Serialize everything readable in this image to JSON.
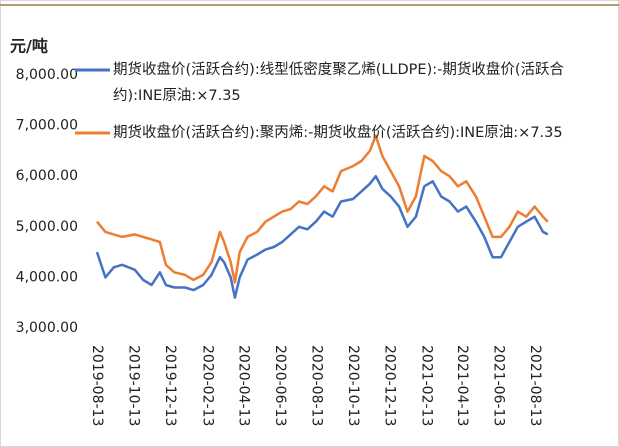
{
  "chart_data": {
    "type": "line",
    "y_label": "元/吨",
    "x": [
      "2019-08-13",
      "2019-08-27",
      "2019-09-10",
      "2019-09-24",
      "2019-10-15",
      "2019-10-29",
      "2019-11-12",
      "2019-11-26",
      "2019-12-06",
      "2019-12-20",
      "2020-01-07",
      "2020-01-21",
      "2020-02-06",
      "2020-02-20",
      "2020-03-05",
      "2020-03-12",
      "2020-03-23",
      "2020-03-30",
      "2020-04-07",
      "2020-04-20",
      "2020-05-06",
      "2020-05-20",
      "2020-06-03",
      "2020-06-17",
      "2020-07-01",
      "2020-07-15",
      "2020-07-29",
      "2020-08-12",
      "2020-08-26",
      "2020-09-09",
      "2020-09-23",
      "2020-10-13",
      "2020-10-27",
      "2020-11-10",
      "2020-11-20",
      "2020-12-01",
      "2020-12-15",
      "2020-12-29",
      "2021-01-12",
      "2021-01-26",
      "2021-02-09",
      "2021-02-23",
      "2021-03-09",
      "2021-03-23",
      "2021-04-06",
      "2021-04-20",
      "2021-05-06",
      "2021-05-20",
      "2021-06-03",
      "2021-06-17",
      "2021-07-01",
      "2021-07-15",
      "2021-07-29",
      "2021-08-12",
      "2021-08-26",
      "2021-09-03"
    ],
    "series": [
      {
        "name": "期货收盘价(活跃合约):线型低密度聚乙烯(LLDPE):-期货收盘价(活跃合约):INE原油:×7.35",
        "color": "#4472c4",
        "values": [
          4500,
          4000,
          4200,
          4250,
          4150,
          3950,
          3850,
          4100,
          3850,
          3800,
          3800,
          3750,
          3850,
          4050,
          4400,
          4300,
          4000,
          3600,
          4000,
          4350,
          4450,
          4550,
          4600,
          4700,
          4850,
          5000,
          4950,
          5100,
          5300,
          5200,
          5500,
          5550,
          5700,
          5850,
          6000,
          5750,
          5600,
          5400,
          5000,
          5200,
          5800,
          5900,
          5600,
          5500,
          5300,
          5400,
          5100,
          4800,
          4400,
          4400,
          4700,
          5000,
          5100,
          5200,
          4900,
          4850
        ]
      },
      {
        "name": "期货收盘价(活跃合约):聚丙烯:-期货收盘价(活跃合约):INE原油:×7.35",
        "color": "#ed7d31",
        "values": [
          5100,
          4900,
          4850,
          4800,
          4850,
          4800,
          4750,
          4700,
          4250,
          4100,
          4050,
          3950,
          4050,
          4300,
          4900,
          4700,
          4300,
          3900,
          4500,
          4800,
          4900,
          5100,
          5200,
          5300,
          5350,
          5500,
          5450,
          5600,
          5800,
          5700,
          6100,
          6200,
          6300,
          6500,
          6800,
          6400,
          6100,
          5800,
          5300,
          5600,
          6400,
          6300,
          6100,
          6000,
          5800,
          5900,
          5600,
          5200,
          4800,
          4800,
          5000,
          5300,
          5200,
          5400,
          5200,
          5100
        ]
      }
    ],
    "xlim": [
      "2019-08-13",
      "2021-09-05"
    ],
    "xticks": [
      "2019-08-13",
      "2019-10-13",
      "2019-12-13",
      "2020-02-13",
      "2020-04-13",
      "2020-06-13",
      "2020-08-13",
      "2020-10-13",
      "2020-12-13",
      "2021-02-13",
      "2021-04-13",
      "2021-06-13",
      "2021-08-13"
    ],
    "ylim": [
      3000,
      8000
    ],
    "yticks": [
      {
        "value": 3000,
        "label": "3,000.00"
      },
      {
        "value": 4000,
        "label": "4,000.00"
      },
      {
        "value": 5000,
        "label": "5,000.00"
      },
      {
        "value": 6000,
        "label": "6,000.00"
      },
      {
        "value": 7000,
        "label": "7,000.00"
      },
      {
        "value": 8000,
        "label": "8,000.00"
      }
    ],
    "grid": false
  }
}
